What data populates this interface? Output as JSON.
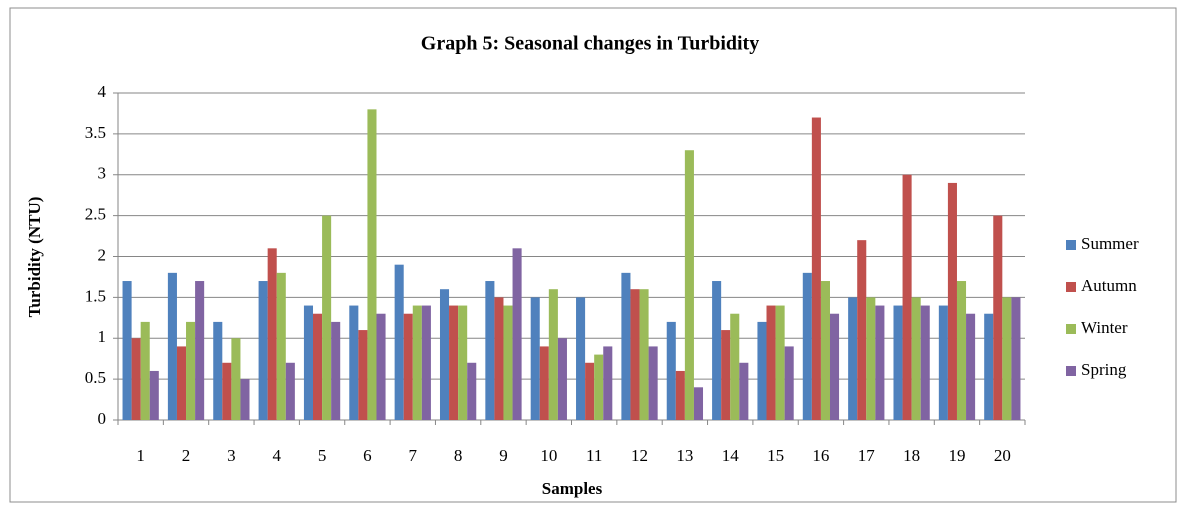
{
  "chart_data": {
    "type": "bar",
    "title": "Graph 5: Seasonal changes in Turbidity",
    "x_label": "Samples",
    "y_label": "Turbidity (NTU)",
    "categories": [
      "1",
      "2",
      "3",
      "4",
      "5",
      "6",
      "7",
      "8",
      "9",
      "10",
      "11",
      "12",
      "13",
      "14",
      "15",
      "16",
      "17",
      "18",
      "19",
      "20"
    ],
    "series": [
      {
        "name": "Summer",
        "color": "#4f81bd",
        "values": [
          1.7,
          1.8,
          1.2,
          1.7,
          1.4,
          1.4,
          1.9,
          1.6,
          1.7,
          1.5,
          1.5,
          1.8,
          1.2,
          1.7,
          1.2,
          1.8,
          1.5,
          1.4,
          1.4,
          1.3
        ]
      },
      {
        "name": "Autumn",
        "color": "#c0504d",
        "values": [
          1.0,
          0.9,
          0.7,
          2.1,
          1.3,
          1.1,
          1.3,
          1.4,
          1.5,
          0.9,
          0.7,
          1.6,
          0.6,
          1.1,
          1.4,
          3.7,
          2.2,
          3.0,
          2.9,
          2.5
        ]
      },
      {
        "name": "Winter",
        "color": "#9bbb59",
        "values": [
          1.2,
          1.2,
          1.0,
          1.8,
          2.5,
          3.8,
          1.4,
          1.4,
          1.4,
          1.6,
          0.8,
          1.6,
          3.3,
          1.3,
          1.4,
          1.7,
          1.5,
          1.5,
          1.7,
          1.5
        ]
      },
      {
        "name": "Spring",
        "color": "#8064a2",
        "values": [
          0.6,
          1.7,
          0.5,
          0.7,
          1.2,
          1.3,
          1.4,
          0.7,
          2.1,
          1.0,
          0.9,
          0.9,
          0.4,
          0.7,
          0.9,
          1.3,
          1.4,
          1.4,
          1.3,
          1.5
        ]
      }
    ],
    "ylim": [
      0,
      4
    ],
    "yticks": [
      0,
      0.5,
      1,
      1.5,
      2,
      2.5,
      3,
      3.5,
      4
    ],
    "grid": true,
    "legend": "right"
  }
}
